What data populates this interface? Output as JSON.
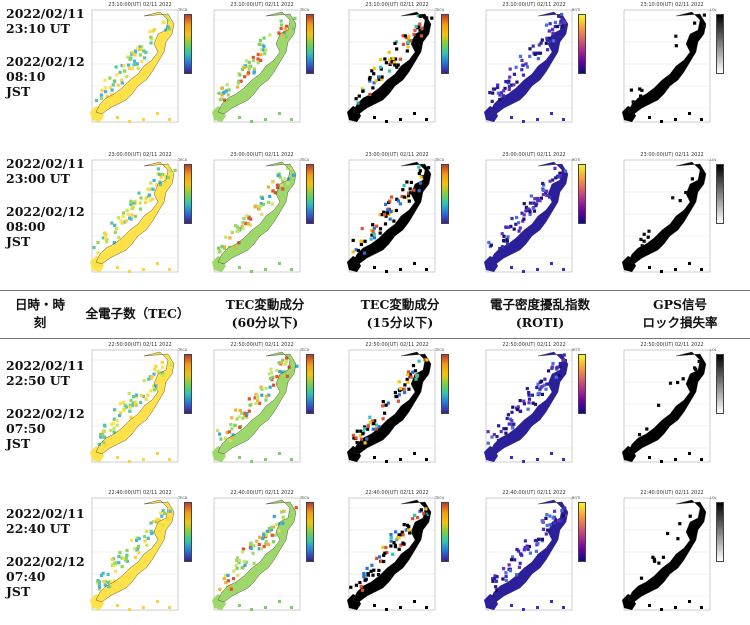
{
  "rows": [
    {
      "ut": "2022/02/11\n23:10 UT",
      "jst": "2022/02/12\n08:10\nJST",
      "map_time": "23:10:00(UT) 02/11 2022"
    },
    {
      "ut": "2022/02/11\n23:00 UT",
      "jst": "2022/02/12\n08:00\nJST",
      "map_time": "23:00:00(UT) 02/11 2022"
    },
    {
      "ut": "2022/02/11\n22:50 UT",
      "jst": "2022/02/12\n07:50\nJST",
      "map_time": "22:50:00(UT) 02/11 2022"
    },
    {
      "ut": "2022/02/11\n22:40 UT",
      "jst": "2022/02/12\n07:40\nJST",
      "map_time": "22:40:00(UT) 02/11 2022"
    }
  ],
  "headers": {
    "col0": "日時・時\n刻",
    "col1": "全電子数（TEC）",
    "col2": "TEC変動成分\n(60分以下)",
    "col3": "TEC変動成分\n(15分以下)",
    "col4": "電子密度擾乱指数\n(ROTI)",
    "col5": "GPS信号\nロック損失率"
  },
  "columns": [
    {
      "kind": "tec",
      "colormap": "rainbow",
      "unit": "TECU"
    },
    {
      "kind": "dtec60",
      "colormap": "rainbow",
      "unit": "TECU"
    },
    {
      "kind": "dtec15",
      "colormap": "rainbow",
      "unit": "TECU"
    },
    {
      "kind": "roti",
      "colormap": "plasma",
      "unit": "ROTI"
    },
    {
      "kind": "lol",
      "colormap": "gray",
      "unit": "LOL"
    }
  ]
}
